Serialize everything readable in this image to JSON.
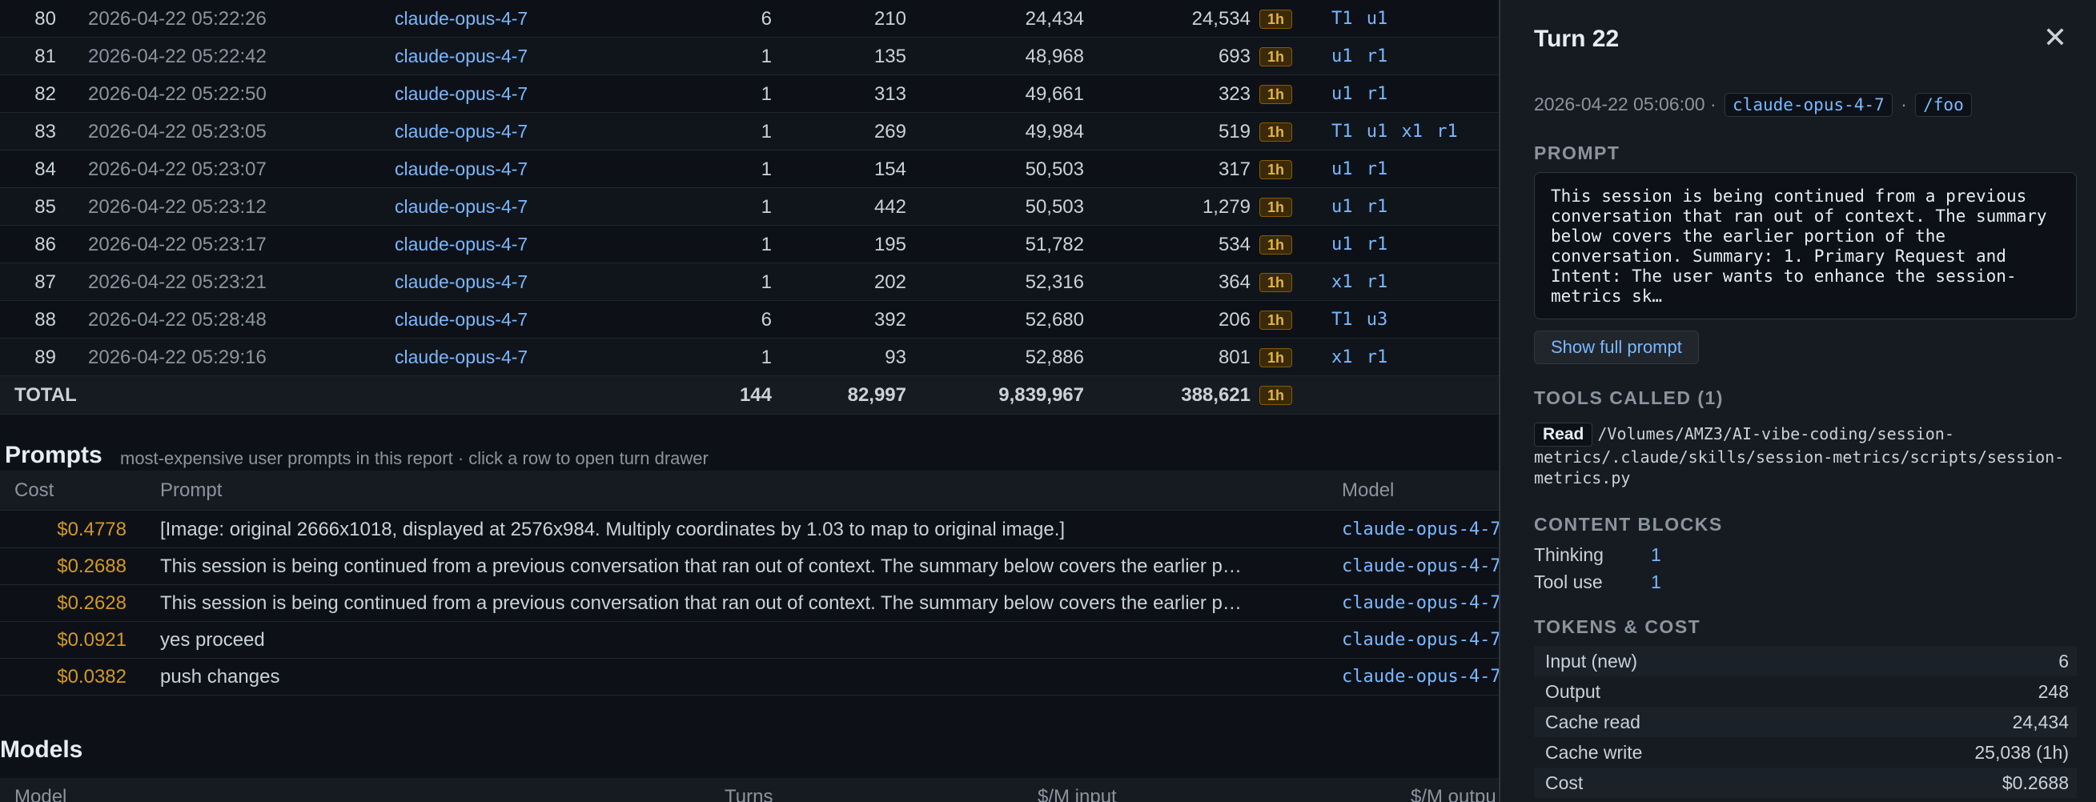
{
  "turns": {
    "rows": [
      {
        "idx": "80",
        "time": "2026-04-22 05:22:26",
        "model": "claude-opus-4-7",
        "n": "6",
        "output": "210",
        "cache_read": "24,434",
        "cache_write": "24,534",
        "ttl": "1h",
        "tags": "T1 u1"
      },
      {
        "idx": "81",
        "time": "2026-04-22 05:22:42",
        "model": "claude-opus-4-7",
        "n": "1",
        "output": "135",
        "cache_read": "48,968",
        "cache_write": "693",
        "ttl": "1h",
        "tags": "u1 r1"
      },
      {
        "idx": "82",
        "time": "2026-04-22 05:22:50",
        "model": "claude-opus-4-7",
        "n": "1",
        "output": "313",
        "cache_read": "49,661",
        "cache_write": "323",
        "ttl": "1h",
        "tags": "u1 r1"
      },
      {
        "idx": "83",
        "time": "2026-04-22 05:23:05",
        "model": "claude-opus-4-7",
        "n": "1",
        "output": "269",
        "cache_read": "49,984",
        "cache_write": "519",
        "ttl": "1h",
        "tags": "T1 u1 x1 r1"
      },
      {
        "idx": "84",
        "time": "2026-04-22 05:23:07",
        "model": "claude-opus-4-7",
        "n": "1",
        "output": "154",
        "cache_read": "50,503",
        "cache_write": "317",
        "ttl": "1h",
        "tags": "u1 r1"
      },
      {
        "idx": "85",
        "time": "2026-04-22 05:23:12",
        "model": "claude-opus-4-7",
        "n": "1",
        "output": "442",
        "cache_read": "50,503",
        "cache_write": "1,279",
        "ttl": "1h",
        "tags": "u1 r1"
      },
      {
        "idx": "86",
        "time": "2026-04-22 05:23:17",
        "model": "claude-opus-4-7",
        "n": "1",
        "output": "195",
        "cache_read": "51,782",
        "cache_write": "534",
        "ttl": "1h",
        "tags": "u1 r1"
      },
      {
        "idx": "87",
        "time": "2026-04-22 05:23:21",
        "model": "claude-opus-4-7",
        "n": "1",
        "output": "202",
        "cache_read": "52,316",
        "cache_write": "364",
        "ttl": "1h",
        "tags": "x1 r1"
      },
      {
        "idx": "88",
        "time": "2026-04-22 05:28:48",
        "model": "claude-opus-4-7",
        "n": "6",
        "output": "392",
        "cache_read": "52,680",
        "cache_write": "206",
        "ttl": "1h",
        "tags": "T1 u3"
      },
      {
        "idx": "89",
        "time": "2026-04-22 05:29:16",
        "model": "claude-opus-4-7",
        "n": "1",
        "output": "93",
        "cache_read": "52,886",
        "cache_write": "801",
        "ttl": "1h",
        "tags": "x1 r1"
      }
    ],
    "total": {
      "label": "TOTAL",
      "n": "144",
      "output": "82,997",
      "cache_read": "9,839,967",
      "cache_write": "388,621",
      "ttl": "1h"
    }
  },
  "prompts": {
    "title": "Prompts",
    "subtitle": "most-expensive user prompts in this report · click a row to open turn drawer",
    "headers": {
      "cost": "Cost",
      "prompt": "Prompt",
      "model": "Model"
    },
    "rows": [
      {
        "cost": "$0.4778",
        "prompt": "[Image: original 2666x1018, displayed at 2576x984. Multiply coordinates by 1.03 to map to original image.]",
        "model": "claude-opus-4-7"
      },
      {
        "cost": "$0.2688",
        "prompt": "This session is being continued from a previous conversation that ran out of context. The summary below covers the earlier p…",
        "model": "claude-opus-4-7"
      },
      {
        "cost": "$0.2628",
        "prompt": "This session is being continued from a previous conversation that ran out of context. The summary below covers the earlier p…",
        "model": "claude-opus-4-7"
      },
      {
        "cost": "$0.0921",
        "prompt": "yes proceed",
        "model": "claude-opus-4-7"
      },
      {
        "cost": "$0.0382",
        "prompt": "push changes",
        "model": "claude-opus-4-7"
      }
    ]
  },
  "models": {
    "title": "Models",
    "headers": {
      "model": "Model",
      "turns": "Turns",
      "input": "$/M input",
      "output": "$/M outpu"
    }
  },
  "drawer": {
    "title": "Turn 22",
    "close_glyph": "✕",
    "timestamp": "2026-04-22 05:06:00",
    "sep": "·",
    "model": "claude-opus-4-7",
    "cwd": "/foo",
    "prompt_heading": "PROMPT",
    "prompt_text": "This session is being continued from a previous conversation that ran out of context. The summary below covers the earlier portion of the conversation. Summary: 1. Primary Request and Intent: The user wants to enhance the session-metrics sk…",
    "show_full_label": "Show full prompt",
    "tools_heading": "TOOLS CALLED (1)",
    "tool_name": "Read",
    "tool_path": "/Volumes/AMZ3/AI-vibe-coding/session-metrics/.claude/skills/session-metrics/scripts/session-metrics.py",
    "blocks_heading": "CONTENT BLOCKS",
    "blocks": [
      {
        "label": "Thinking",
        "value": "1"
      },
      {
        "label": "Tool use",
        "value": "1"
      }
    ],
    "tokens_heading": "TOKENS & COST",
    "tokens": [
      {
        "label": "Input (new)",
        "value": "6"
      },
      {
        "label": "Output",
        "value": "248"
      },
      {
        "label": "Cache read",
        "value": "24,434"
      },
      {
        "label": "Cache write",
        "value": "25,038 (1h)"
      },
      {
        "label": "Cost",
        "value": "$0.2688"
      }
    ]
  }
}
